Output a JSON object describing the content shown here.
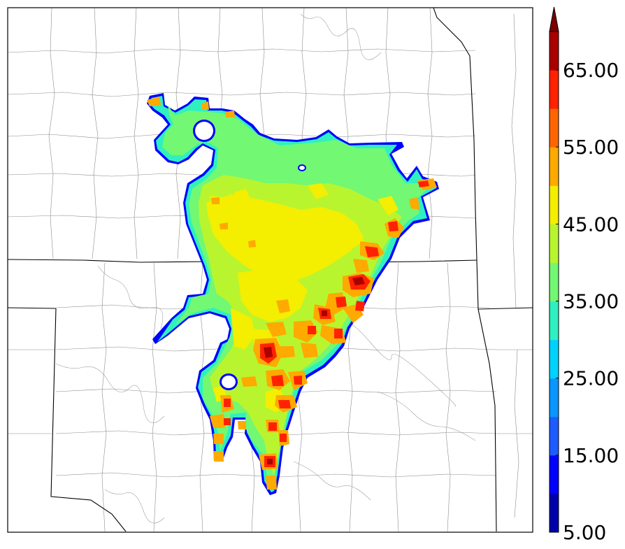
{
  "colorbar": {
    "ticks": [
      "5.00",
      "15.00",
      "25.00",
      "35.00",
      "45.00",
      "55.00",
      "65.00"
    ],
    "colors": [
      "#0000aa",
      "#0000ff",
      "#1e5cff",
      "#0a96ff",
      "#00d2ff",
      "#2ff0c0",
      "#72f873",
      "#b9f52f",
      "#f4ee00",
      "#ffaa00",
      "#ff6600",
      "#ff2200",
      "#aa0000"
    ],
    "extend_color": "#7d0000",
    "min": 5,
    "max": 70,
    "extend": "max"
  },
  "field": {
    "colors": {
      "edge": "#0000ff",
      "low": "#2ff0c0",
      "mid": "#72f873",
      "midhigh": "#b9f52f",
      "high": "#f4ee00",
      "orange": "#ffaa00",
      "red": "#ff2200",
      "darkred": "#aa0000"
    }
  },
  "basemap": {
    "state_line_color": "#000000",
    "county_line_color": "#8c8c8c",
    "river_color": "#a0a0a0"
  }
}
